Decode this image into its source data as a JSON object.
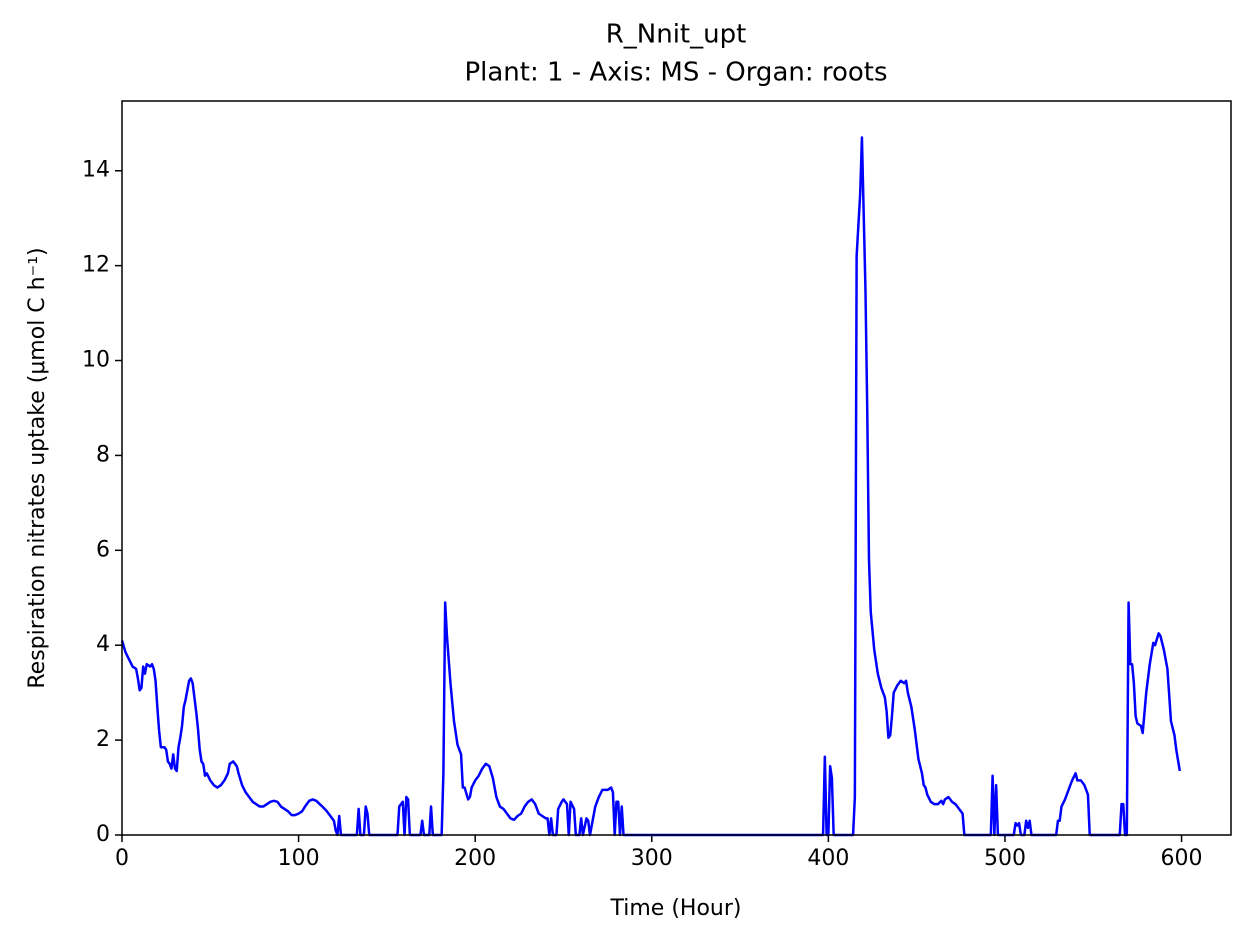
{
  "chart_data": {
    "type": "line",
    "title": "R_Nnit_upt",
    "subtitle": "Plant: 1 - Axis: MS - Organ: roots",
    "xlabel": "Time (Hour)",
    "ylabel": "Respiration nitrates uptake (μmol C h⁻¹)",
    "xlim": [
      0,
      628
    ],
    "ylim": [
      0,
      15.47
    ],
    "xticks": [
      0,
      100,
      200,
      300,
      400,
      500,
      600
    ],
    "yticks": [
      0,
      2,
      4,
      6,
      8,
      10,
      12,
      14
    ],
    "x": [
      0,
      2,
      4,
      6,
      8,
      9,
      10,
      11,
      12,
      13,
      14,
      16,
      17,
      18,
      19,
      20,
      21,
      22,
      24,
      25,
      26,
      27,
      28,
      29,
      30,
      31,
      32,
      33,
      34,
      35,
      36,
      37,
      38,
      39,
      40,
      41,
      42,
      43,
      44,
      45,
      46,
      47,
      48,
      50,
      52,
      54,
      56,
      58,
      60,
      61,
      63,
      65,
      66,
      68,
      70,
      72,
      74,
      76,
      78,
      80,
      82,
      84,
      86,
      88,
      90,
      92,
      94,
      96,
      98,
      100,
      102,
      104,
      106,
      108,
      110,
      112,
      114,
      116,
      118,
      120,
      121,
      122,
      123,
      124,
      133,
      134,
      135,
      137,
      138,
      139,
      140,
      156,
      157,
      159,
      160,
      161,
      162,
      163,
      169,
      170,
      171,
      174,
      175,
      176,
      181,
      182,
      183,
      184,
      186,
      188,
      190,
      192,
      193,
      194,
      196,
      197,
      198,
      200,
      202,
      204,
      206,
      208,
      210,
      212,
      214,
      216,
      218,
      220,
      222,
      224,
      226,
      228,
      230,
      232,
      234,
      236,
      238,
      240,
      241,
      242,
      243,
      244,
      246,
      247,
      249,
      250,
      252,
      253,
      254,
      256,
      257,
      259,
      260,
      261,
      263,
      264,
      265,
      267,
      268,
      270,
      272,
      275,
      277,
      278,
      279,
      280,
      281,
      282,
      283,
      284,
      397,
      398,
      399,
      400,
      401,
      402,
      403,
      414,
      415,
      416,
      418,
      419,
      421,
      422,
      423,
      424,
      426,
      428,
      430,
      432,
      433,
      434,
      435,
      436,
      437,
      439,
      441,
      443,
      444,
      445,
      447,
      449,
      451,
      453,
      454,
      455,
      456,
      458,
      460,
      462,
      464,
      465,
      466,
      468,
      470,
      472,
      474,
      476,
      477,
      492,
      493,
      494,
      495,
      496,
      505,
      506,
      507,
      508,
      509,
      511,
      512,
      513,
      514,
      515,
      529,
      530,
      531,
      532,
      534,
      536,
      538,
      540,
      541,
      543,
      545,
      546,
      547,
      548,
      565,
      566,
      567,
      568,
      569,
      570,
      571,
      572,
      573,
      574,
      575,
      577,
      578,
      580,
      582,
      584,
      585,
      587,
      588,
      590,
      592,
      594,
      596,
      597,
      599
    ],
    "series": [
      {
        "name": "R_Nnit_upt",
        "color": "#0000ff",
        "values": [
          4.1,
          3.85,
          3.7,
          3.55,
          3.5,
          3.3,
          3.05,
          3.1,
          3.55,
          3.4,
          3.6,
          3.55,
          3.6,
          3.5,
          3.25,
          2.7,
          2.2,
          1.85,
          1.85,
          1.8,
          1.55,
          1.5,
          1.4,
          1.7,
          1.4,
          1.35,
          1.85,
          2.05,
          2.3,
          2.7,
          2.85,
          3.05,
          3.25,
          3.3,
          3.2,
          2.9,
          2.6,
          2.25,
          1.8,
          1.55,
          1.5,
          1.25,
          1.3,
          1.15,
          1.05,
          1.0,
          1.05,
          1.15,
          1.3,
          1.5,
          1.55,
          1.45,
          1.3,
          1.05,
          0.9,
          0.8,
          0.7,
          0.65,
          0.6,
          0.6,
          0.65,
          0.7,
          0.72,
          0.7,
          0.6,
          0.55,
          0.5,
          0.42,
          0.42,
          0.45,
          0.5,
          0.62,
          0.72,
          0.75,
          0.72,
          0.65,
          0.58,
          0.5,
          0.4,
          0.3,
          0.1,
          0,
          0.4,
          0,
          0,
          0.55,
          0,
          0,
          0.6,
          0.45,
          0,
          0,
          0.6,
          0.7,
          0,
          0.8,
          0.75,
          0,
          0,
          0.3,
          0,
          0,
          0.6,
          0,
          0,
          1.3,
          4.9,
          4.2,
          3.2,
          2.4,
          1.9,
          1.7,
          1.0,
          1.0,
          0.75,
          0.8,
          1.0,
          1.15,
          1.25,
          1.4,
          1.5,
          1.45,
          1.2,
          0.8,
          0.6,
          0.55,
          0.45,
          0.35,
          0.32,
          0.4,
          0.45,
          0.6,
          0.7,
          0.75,
          0.65,
          0.45,
          0.4,
          0.35,
          0.35,
          0,
          0.35,
          0,
          0,
          0.55,
          0.7,
          0.75,
          0.65,
          0,
          0.7,
          0.55,
          0,
          0,
          0.35,
          0,
          0.35,
          0.3,
          0,
          0.4,
          0.6,
          0.8,
          0.95,
          0.95,
          1.0,
          0.9,
          0,
          0.7,
          0.7,
          0,
          0.6,
          0,
          0,
          1.65,
          0,
          0,
          1.45,
          1.2,
          0,
          0,
          0.8,
          12.2,
          13.5,
          14.7,
          11.5,
          9.0,
          5.8,
          4.7,
          3.9,
          3.4,
          3.1,
          2.9,
          2.6,
          2.05,
          2.1,
          2.5,
          3.0,
          3.15,
          3.25,
          3.2,
          3.25,
          3.0,
          2.7,
          2.2,
          1.6,
          1.3,
          1.05,
          1.0,
          0.85,
          0.7,
          0.65,
          0.65,
          0.72,
          0.65,
          0.75,
          0.8,
          0.7,
          0.65,
          0.55,
          0.45,
          0,
          0,
          1.25,
          0,
          1.05,
          0,
          0,
          0.25,
          0.2,
          0.25,
          0,
          0,
          0.3,
          0.15,
          0.3,
          0,
          0,
          0.3,
          0.3,
          0.6,
          0.75,
          0.95,
          1.15,
          1.3,
          1.15,
          1.15,
          1.05,
          0.95,
          0.85,
          0,
          0,
          0.65,
          0.65,
          0,
          0,
          4.9,
          3.6,
          3.6,
          3.2,
          2.5,
          2.35,
          2.3,
          2.15,
          3.0,
          3.6,
          4.05,
          4.0,
          4.25,
          4.2,
          3.9,
          3.5,
          2.4,
          2.1,
          1.8,
          1.35
        ]
      }
    ]
  }
}
